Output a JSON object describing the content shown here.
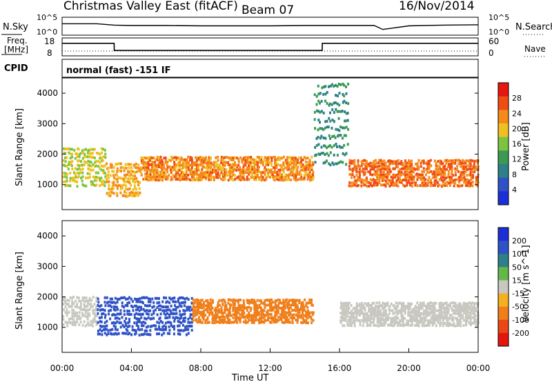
{
  "header": {
    "title": "Christmas Valley East (fitACF)",
    "beam": "Beam 07",
    "date": "16/Nov/2014"
  },
  "panels": {
    "nsky": {
      "label": "N.Sky",
      "right_label": "N.Search",
      "ticks": [
        "10^5",
        "10^0"
      ]
    },
    "freq": {
      "label_line1": "Freq.",
      "label_line2": "[MHz]",
      "right_label": "Nave",
      "left_ticks": [
        "18",
        "8"
      ],
      "right_ticks": [
        "60",
        "0"
      ]
    },
    "cpid": {
      "label": "CPID",
      "value": "normal (fast) -151 IF"
    }
  },
  "colors": {
    "power_scale": [
      "#1b2fd6",
      "#2f52c6",
      "#2d7f8a",
      "#3a9a54",
      "#7cc43f",
      "#f0c020",
      "#f58a1a",
      "#ef4d14",
      "#e41810"
    ],
    "velocity_scale": [
      "#1b2fd6",
      "#2f52c6",
      "#2d7f8a",
      "#63b947",
      "#c8c8c0",
      "#f3b01f",
      "#f07f1a",
      "#ea4715",
      "#e4170f"
    ]
  },
  "chart_data": [
    {
      "type": "line",
      "title": "N.Sky / N.Search",
      "x": [
        0,
        2,
        3,
        4,
        6,
        8,
        10,
        12,
        14,
        17,
        18,
        18.5,
        20,
        22,
        24
      ],
      "series": [
        {
          "name": "N.Sky",
          "values": [
            3.2,
            3.2,
            2.8,
            2.7,
            2.7,
            2.6,
            2.6,
            2.6,
            2.7,
            2.7,
            2.7,
            1.6,
            2.6,
            2.8,
            2.9
          ]
        }
      ],
      "ylim": [
        0,
        5
      ]
    },
    {
      "type": "line",
      "title": "Freq. / Nave",
      "x": [
        0,
        3,
        3.01,
        15,
        15.01,
        24
      ],
      "series": [
        {
          "name": "Freq",
          "values": [
            15,
            15,
            11,
            11,
            15,
            15
          ]
        }
      ],
      "ylim": [
        8,
        18
      ]
    },
    {
      "type": "heatmap",
      "title": "Power",
      "ylabel": "Slant Range [km]",
      "colorbar_label": "Power [dB]",
      "colorbar_ticks": [
        4,
        8,
        12,
        16,
        20,
        24,
        28
      ],
      "ylim": [
        180,
        4500
      ],
      "yticks": [
        1000,
        2000,
        3000,
        4000
      ],
      "regions": [
        {
          "t0": 0,
          "t1": 2.5,
          "r_lo": 900,
          "r_hi": 2200,
          "level": 18
        },
        {
          "t0": 2.5,
          "t1": 4.5,
          "r_lo": 550,
          "r_hi": 1700,
          "level": 22
        },
        {
          "t0": 4.5,
          "t1": 14.5,
          "r_lo": 1100,
          "r_hi": 1900,
          "level": 24
        },
        {
          "t0": 14.5,
          "t1": 16.5,
          "r_lo": 1600,
          "r_hi": 4400,
          "level": 10
        },
        {
          "t0": 16.5,
          "t1": 24,
          "r_lo": 900,
          "r_hi": 1800,
          "level": 26
        }
      ]
    },
    {
      "type": "heatmap",
      "title": "Velocity",
      "xlabel": "Time UT",
      "ylabel": "Slant Range [km]",
      "colorbar_label": "Velocity [m s^-1]",
      "colorbar_ticks": [
        200,
        100,
        50,
        15,
        -15,
        -50,
        -100,
        -200
      ],
      "ylim": [
        180,
        4500
      ],
      "yticks": [
        1000,
        2000,
        3000,
        4000
      ],
      "xticks": [
        "00:00",
        "04:00",
        "08:00",
        "12:00",
        "16:00",
        "20:00",
        "00:00"
      ],
      "regions": [
        {
          "t0": 0,
          "t1": 2.0,
          "r_lo": 1000,
          "r_hi": 2000,
          "level": 0
        },
        {
          "t0": 2.0,
          "t1": 7.5,
          "r_lo": 700,
          "r_hi": 2000,
          "level": 140
        },
        {
          "t0": 7.5,
          "t1": 14.5,
          "r_lo": 1100,
          "r_hi": 1900,
          "level": -90
        },
        {
          "t0": 16.0,
          "t1": 24,
          "r_lo": 1000,
          "r_hi": 1800,
          "level": 0
        }
      ]
    }
  ]
}
